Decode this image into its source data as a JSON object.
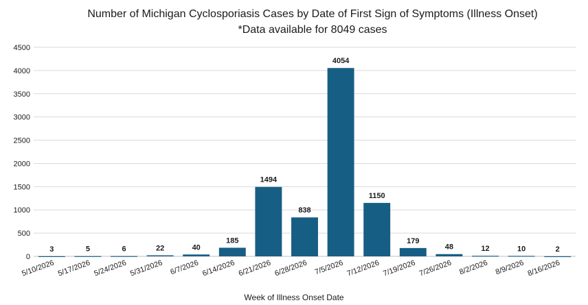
{
  "chart_data": {
    "type": "bar",
    "title": "Number of Michigan Cyclosporiasis Cases by Date of First Sign of Symptoms (Illness Onset)",
    "subtitle": "*Data available for 8049 cases",
    "xlabel": "Week of Illness Onset Date",
    "ylabel": "",
    "ylim": [
      0,
      4500
    ],
    "yticks": [
      0,
      500,
      1000,
      1500,
      2000,
      2500,
      3000,
      3500,
      4000,
      4500
    ],
    "grid": true,
    "bar_color": "#175e84",
    "categories": [
      "5/10/2026",
      "5/17/2026",
      "5/24/2026",
      "5/31/2026",
      "6/7/2026",
      "6/14/2026",
      "6/21/2026",
      "6/28/2026",
      "7/5/2026",
      "7/12/2026",
      "7/19/2026",
      "7/26/2026",
      "8/2/2026",
      "8/9/2026",
      "8/16/2026"
    ],
    "values": [
      3,
      5,
      6,
      22,
      40,
      185,
      1494,
      838,
      4054,
      1150,
      179,
      48,
      12,
      10,
      2
    ]
  }
}
